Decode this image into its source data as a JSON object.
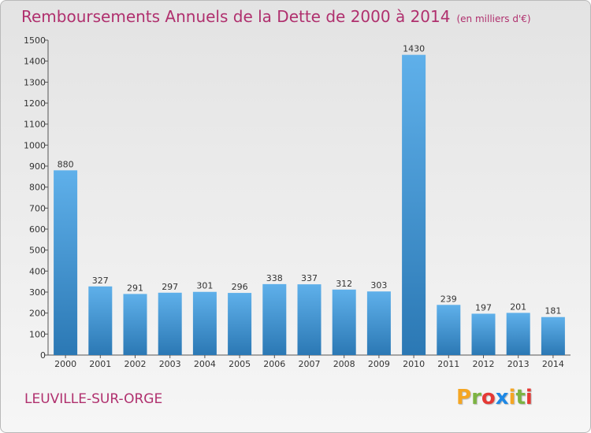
{
  "header": {
    "title": "Remboursements Annuels de la Dette de 2000 à 2014",
    "unit": "(en milliers d'€)"
  },
  "footer": {
    "commune": "LEUVILLE-SUR-ORGE",
    "logo": {
      "letters": [
        "P",
        "r",
        "o",
        "x",
        "i",
        "t",
        "i"
      ],
      "colors": [
        "#f5a623",
        "#7cb342",
        "#e53935",
        "#1e88e5",
        "#f5a623",
        "#7cb342",
        "#e53935"
      ]
    }
  },
  "colors": {
    "bar_light": "#5fb0ea",
    "bar_dark": "#2b78b4",
    "accent": "#b0306e"
  },
  "chart_data": {
    "type": "bar",
    "categories": [
      "2000",
      "2001",
      "2002",
      "2003",
      "2004",
      "2005",
      "2006",
      "2007",
      "2008",
      "2009",
      "2010",
      "2011",
      "2012",
      "2013",
      "2014"
    ],
    "values": [
      880,
      327,
      291,
      297,
      301,
      296,
      338,
      337,
      312,
      303,
      1430,
      239,
      197,
      201,
      181
    ],
    "ylim": [
      0,
      1500
    ],
    "yticks": [
      0,
      100,
      200,
      300,
      400,
      500,
      600,
      700,
      800,
      900,
      1000,
      1100,
      1200,
      1300,
      1400,
      1500
    ],
    "grid": false
  }
}
